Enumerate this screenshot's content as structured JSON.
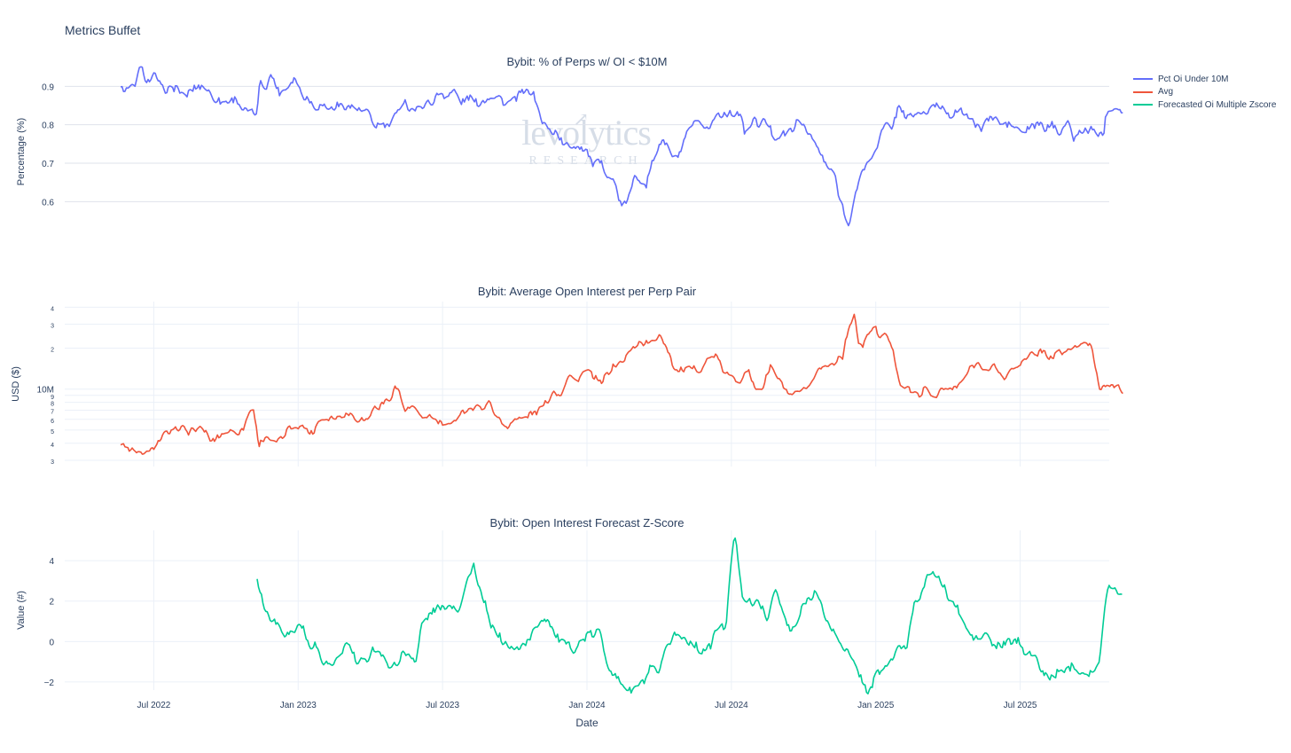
{
  "title": "Metrics Buffet",
  "watermark": {
    "main": "levolytics",
    "sub": "RESEARCH"
  },
  "legend": [
    {
      "label": "Pct Oi Under 10M",
      "color": "#636efa"
    },
    {
      "label": "Avg",
      "color": "#ef553b"
    },
    {
      "label": "Forecasted Oi Multiple Zscore",
      "color": "#00cc96"
    }
  ],
  "xaxis": {
    "label": "Date",
    "ticks": [
      "Jul 2022",
      "Jan 2023",
      "Jul 2023",
      "Jan 2024",
      "Jul 2024",
      "Jan 2025",
      "Jul 2025"
    ],
    "range_months": [
      2.3,
      45.7
    ]
  },
  "chart_data": [
    {
      "type": "line",
      "title": "Bybit: % of Perps w/ OI < $10M",
      "ylabel": "Percentage (%)",
      "yticks": [
        "0.9",
        "0.8",
        "0.7",
        "0.6"
      ],
      "ylim": [
        0.52,
        0.94
      ],
      "grid": "horizontal",
      "series": [
        {
          "name": "Pct Oi Under 10M",
          "color": "#636efa",
          "x_start": "2022-05-20",
          "x_end": "2025-11-10",
          "x": [
            "2022-05-20",
            "2022-06-15",
            "2022-07-01",
            "2022-08-05",
            "2022-09-01",
            "2022-10-01",
            "2022-10-20",
            "2022-11-10",
            "2022-11-14",
            "2022-12-10",
            "2023-01-01",
            "2023-01-15",
            "2023-02-15",
            "2023-03-15",
            "2023-04-15",
            "2023-05-15",
            "2023-06-15",
            "2023-07-15",
            "2023-08-15",
            "2023-09-15",
            "2023-10-01",
            "2023-10-20",
            "2023-11-01",
            "2023-11-20",
            "2023-12-10",
            "2024-01-01",
            "2024-01-20",
            "2024-02-15",
            "2024-03-01",
            "2024-03-15",
            "2024-04-01",
            "2024-04-20",
            "2024-05-10",
            "2024-06-01",
            "2024-07-01",
            "2024-07-20",
            "2024-08-10",
            "2024-08-25",
            "2024-09-15",
            "2024-10-01",
            "2024-10-20",
            "2024-11-05",
            "2024-11-20",
            "2024-11-28",
            "2024-12-10",
            "2024-12-25",
            "2025-01-10",
            "2025-02-01",
            "2025-02-15",
            "2025-03-15",
            "2025-04-15",
            "2025-05-15",
            "2025-06-15",
            "2025-07-15",
            "2025-08-15",
            "2025-09-15",
            "2025-10-01",
            "2025-10-15",
            "2025-10-20",
            "2025-11-10"
          ],
          "values": [
            0.89,
            0.93,
            0.92,
            0.88,
            0.9,
            0.87,
            0.86,
            0.82,
            0.92,
            0.9,
            0.91,
            0.86,
            0.84,
            0.85,
            0.8,
            0.85,
            0.86,
            0.88,
            0.85,
            0.87,
            0.86,
            0.88,
            0.84,
            0.78,
            0.74,
            0.72,
            0.68,
            0.6,
            0.66,
            0.63,
            0.77,
            0.71,
            0.78,
            0.8,
            0.84,
            0.79,
            0.82,
            0.77,
            0.79,
            0.8,
            0.75,
            0.68,
            0.6,
            0.53,
            0.66,
            0.72,
            0.78,
            0.84,
            0.83,
            0.84,
            0.82,
            0.8,
            0.81,
            0.79,
            0.8,
            0.78,
            0.79,
            0.78,
            0.85,
            0.85
          ]
        }
      ]
    },
    {
      "type": "line",
      "title": "Bybit: Average Open Interest per Perp Pair",
      "ylabel": "USD ($)",
      "yscale": "log",
      "ytick_values": [
        3000000,
        4000000,
        5000000,
        6000000,
        7000000,
        8000000,
        9000000,
        10000000,
        20000000,
        30000000,
        40000000
      ],
      "yticks": [
        "3",
        "4",
        "5",
        "6",
        "7",
        "8",
        "9",
        "10M",
        "2",
        "3",
        "4"
      ],
      "ylim": [
        2700000,
        44000000
      ],
      "grid": "both",
      "series": [
        {
          "name": "Avg",
          "color": "#ef553b",
          "x": [
            "2022-05-20",
            "2022-06-10",
            "2022-07-01",
            "2022-08-01",
            "2022-08-20",
            "2022-09-15",
            "2022-10-15",
            "2022-11-05",
            "2022-11-12",
            "2022-11-25",
            "2022-12-15",
            "2023-01-15",
            "2023-02-15",
            "2023-03-15",
            "2023-04-10",
            "2023-05-01",
            "2023-05-15",
            "2023-06-15",
            "2023-07-10",
            "2023-08-01",
            "2023-09-01",
            "2023-09-10",
            "2023-10-15",
            "2023-11-15",
            "2023-12-10",
            "2024-01-01",
            "2024-01-20",
            "2024-02-15",
            "2024-03-15",
            "2024-04-01",
            "2024-04-20",
            "2024-05-15",
            "2024-06-10",
            "2024-07-01",
            "2024-07-20",
            "2024-08-10",
            "2024-08-20",
            "2024-09-15",
            "2024-10-05",
            "2024-10-25",
            "2024-11-20",
            "2024-11-28",
            "2024-12-05",
            "2024-12-10",
            "2025-01-01",
            "2025-01-20",
            "2025-02-01",
            "2025-02-20",
            "2025-03-15",
            "2025-04-15",
            "2025-05-10",
            "2025-06-15",
            "2025-07-15",
            "2025-08-15",
            "2025-09-15",
            "2025-10-01",
            "2025-10-10",
            "2025-10-20",
            "2025-11-10"
          ],
          "values": [
            3800000,
            3100000,
            3900000,
            4800000,
            5600000,
            4300000,
            4600000,
            6800000,
            3600000,
            4300000,
            4800000,
            5100000,
            6500000,
            5800000,
            7000000,
            10000000,
            7500000,
            6200000,
            5500000,
            7000000,
            8700000,
            5500000,
            6200000,
            8500000,
            12000000,
            14000000,
            11000000,
            16000000,
            22000000,
            25000000,
            14000000,
            15000000,
            17000000,
            12000000,
            13000000,
            10000000,
            15000000,
            9000000,
            10500000,
            15000000,
            17000000,
            30000000,
            40000000,
            22000000,
            28000000,
            22000000,
            12000000,
            10000000,
            9000000,
            11000000,
            16000000,
            12000000,
            20000000,
            17000000,
            22000000,
            19000000,
            10000000,
            11000000,
            9000000
          ]
        }
      ]
    },
    {
      "type": "line",
      "title": "Bybit: Open Interest Forecast Z-Score",
      "ylabel": "Value (#)",
      "yticks": [
        "4",
        "2",
        "0",
        "−2"
      ],
      "ytick_values": [
        4,
        2,
        0,
        -2
      ],
      "ylim": [
        -2.4,
        5.5
      ],
      "grid": "both",
      "series": [
        {
          "name": "Forecasted Oi Multiple Zscore",
          "color": "#00cc96",
          "x": [
            "2022-11-10",
            "2022-11-20",
            "2022-12-15",
            "2023-01-05",
            "2023-01-25",
            "2023-02-15",
            "2023-03-01",
            "2023-03-15",
            "2023-04-05",
            "2023-04-20",
            "2023-05-10",
            "2023-05-28",
            "2023-06-05",
            "2023-06-25",
            "2023-07-20",
            "2023-08-10",
            "2023-08-20",
            "2023-09-15",
            "2023-10-01",
            "2023-10-20",
            "2023-11-05",
            "2023-11-20",
            "2023-12-15",
            "2024-01-01",
            "2024-01-15",
            "2024-02-05",
            "2024-02-25",
            "2024-03-20",
            "2024-04-01",
            "2024-04-20",
            "2024-05-01",
            "2024-05-20",
            "2024-06-10",
            "2024-06-25",
            "2024-07-05",
            "2024-07-15",
            "2024-08-05",
            "2024-08-15",
            "2024-08-25",
            "2024-09-15",
            "2024-10-15",
            "2024-11-05",
            "2024-11-20",
            "2024-12-10",
            "2024-12-20",
            "2025-01-20",
            "2025-02-10",
            "2025-02-20",
            "2025-03-10",
            "2025-04-01",
            "2025-05-01",
            "2025-06-01",
            "2025-07-01",
            "2025-08-01",
            "2025-08-20",
            "2025-09-15",
            "2025-10-01",
            "2025-10-10",
            "2025-10-20",
            "2025-11-10"
          ],
          "values": [
            3.4,
            1.5,
            0.5,
            0.7,
            -0.5,
            -1.2,
            0.0,
            -1.4,
            -0.5,
            -1.2,
            -0.8,
            -1.0,
            1.0,
            2.0,
            1.5,
            4.0,
            2.0,
            0.0,
            -0.3,
            0.2,
            1.5,
            0.5,
            -0.5,
            0.7,
            0.5,
            -1.8,
            -2.2,
            -1.5,
            -1.5,
            0.5,
            0.3,
            -0.5,
            0.2,
            1.0,
            5.3,
            2.5,
            2.0,
            1.0,
            2.5,
            0.5,
            2.5,
            0.5,
            -0.5,
            -1.5,
            -2.3,
            -1.0,
            0.0,
            1.8,
            3.5,
            2.0,
            0.5,
            0.0,
            0.0,
            -1.8,
            -1.2,
            -1.5,
            -1.2,
            -1.0,
            2.5,
            2.6
          ]
        }
      ]
    }
  ]
}
